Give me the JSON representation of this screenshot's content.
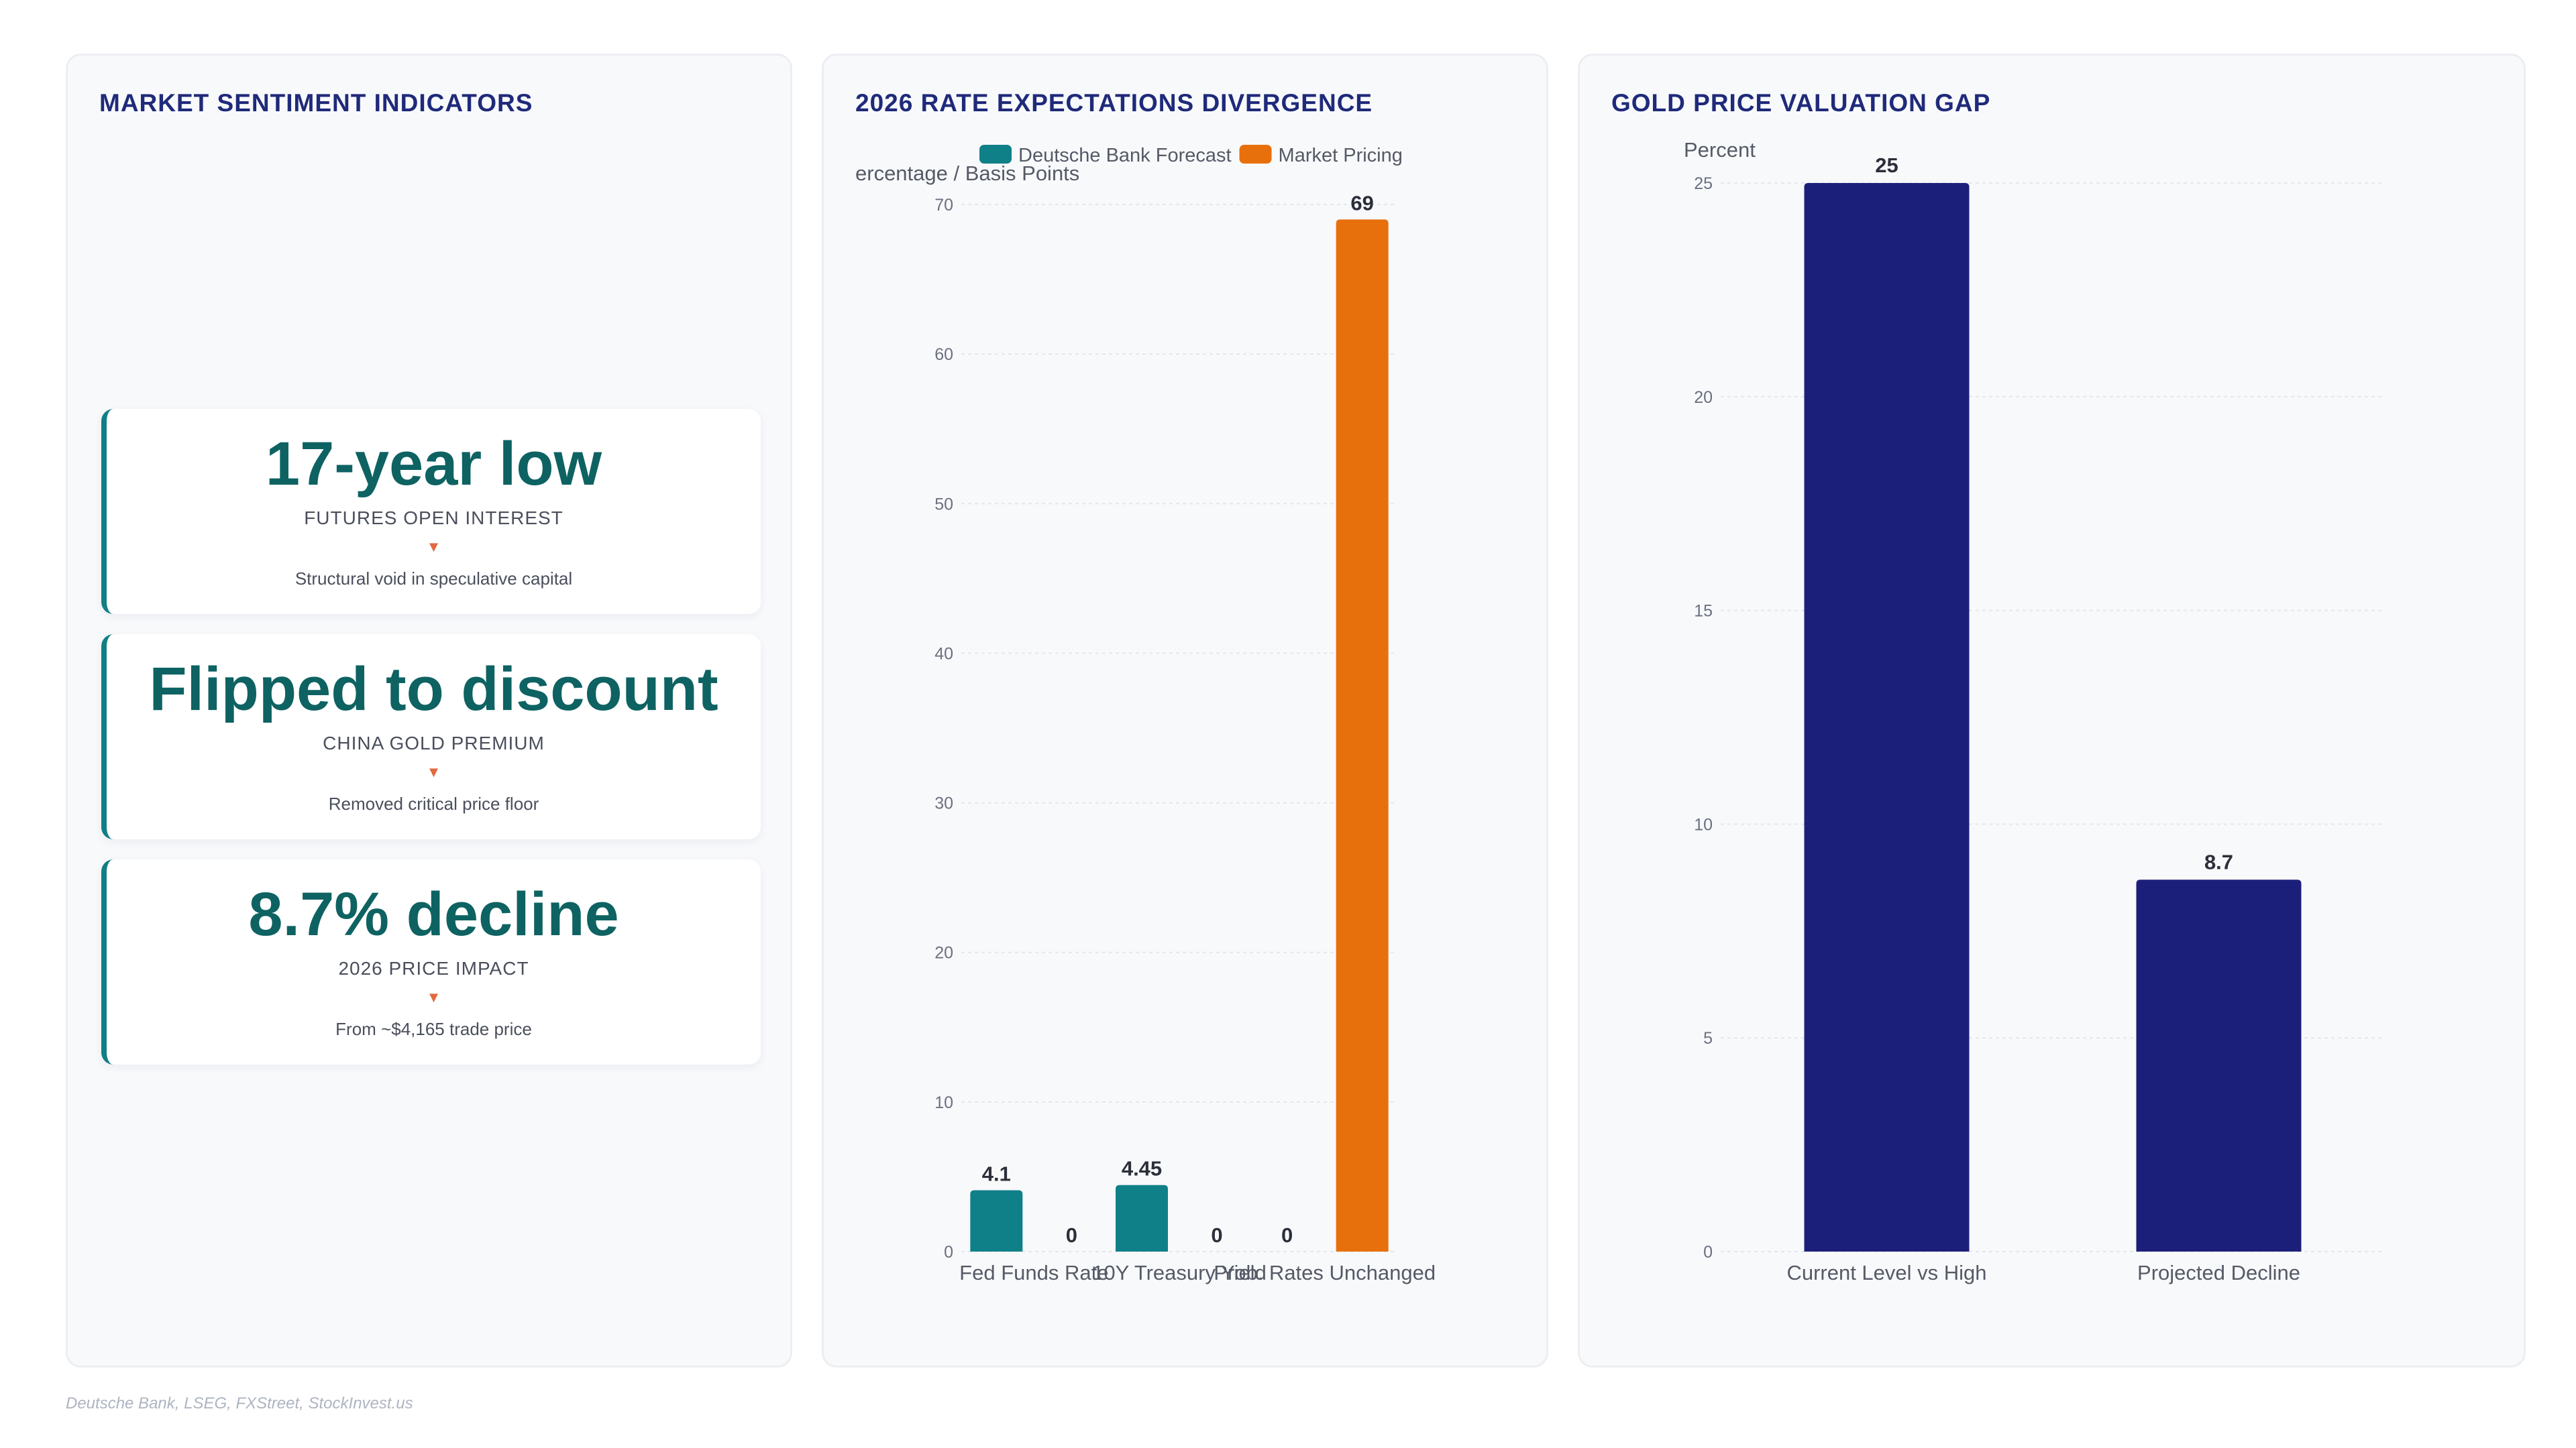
{
  "panels": {
    "sentiment": {
      "title": "MARKET SENTIMENT INDICATORS",
      "cards": [
        {
          "value": "17-year low",
          "label": "FUTURES OPEN INTEREST",
          "arrow": "▼",
          "note": "Structural void in speculative capital"
        },
        {
          "value": "Flipped to discount",
          "label": "CHINA GOLD PREMIUM",
          "arrow": "▼",
          "note": "Removed critical price floor"
        },
        {
          "value": "8.7% decline",
          "label": "2026 PRICE IMPACT",
          "arrow": "▼",
          "note": "From ~$4,165 trade price"
        }
      ]
    },
    "rates": {
      "title": "2026 RATE EXPECTATIONS DIVERGENCE"
    },
    "gold": {
      "title": "GOLD PRICE VALUATION GAP"
    }
  },
  "source": "Deutsche Bank, LSEG, FXStreet, StockInvest.us",
  "colors": {
    "teal": "#0f8088",
    "orange": "#e8700c",
    "navy": "#1c1f7a",
    "title": "#1f2a7a",
    "kpi_value": "#0e6262",
    "arrow": "#e2683e"
  },
  "chart_data": [
    {
      "type": "bar",
      "title": "2026 RATE EXPECTATIONS DIVERGENCE",
      "ylabel": "ercentage / Basis Points",
      "xlabel": "",
      "categories": [
        "Fed Funds Rate",
        "10Y Treasury Yield",
        "Prob. Rates Unchanged"
      ],
      "series": [
        {
          "name": "Deutsche Bank Forecast",
          "color": "#0f8088",
          "values": [
            4.1,
            4.45,
            0
          ]
        },
        {
          "name": "Market Pricing",
          "color": "#e8700c",
          "values": [
            0,
            0,
            69
          ]
        }
      ],
      "ylim": [
        0,
        70
      ],
      "yticks": [
        0,
        10,
        20,
        30,
        40,
        50,
        60,
        70
      ],
      "grid": true,
      "legend": "top"
    },
    {
      "type": "bar",
      "title": "GOLD PRICE VALUATION GAP",
      "ylabel": "Percent",
      "xlabel": "",
      "categories": [
        "Current Level vs High",
        "Projected Decline"
      ],
      "series": [
        {
          "color": "#1c1f7a",
          "values": [
            25,
            8.7
          ]
        }
      ],
      "ylim": [
        0,
        25
      ],
      "yticks": [
        0,
        5,
        10,
        15,
        20,
        25
      ],
      "grid": true,
      "legend": "none"
    }
  ]
}
